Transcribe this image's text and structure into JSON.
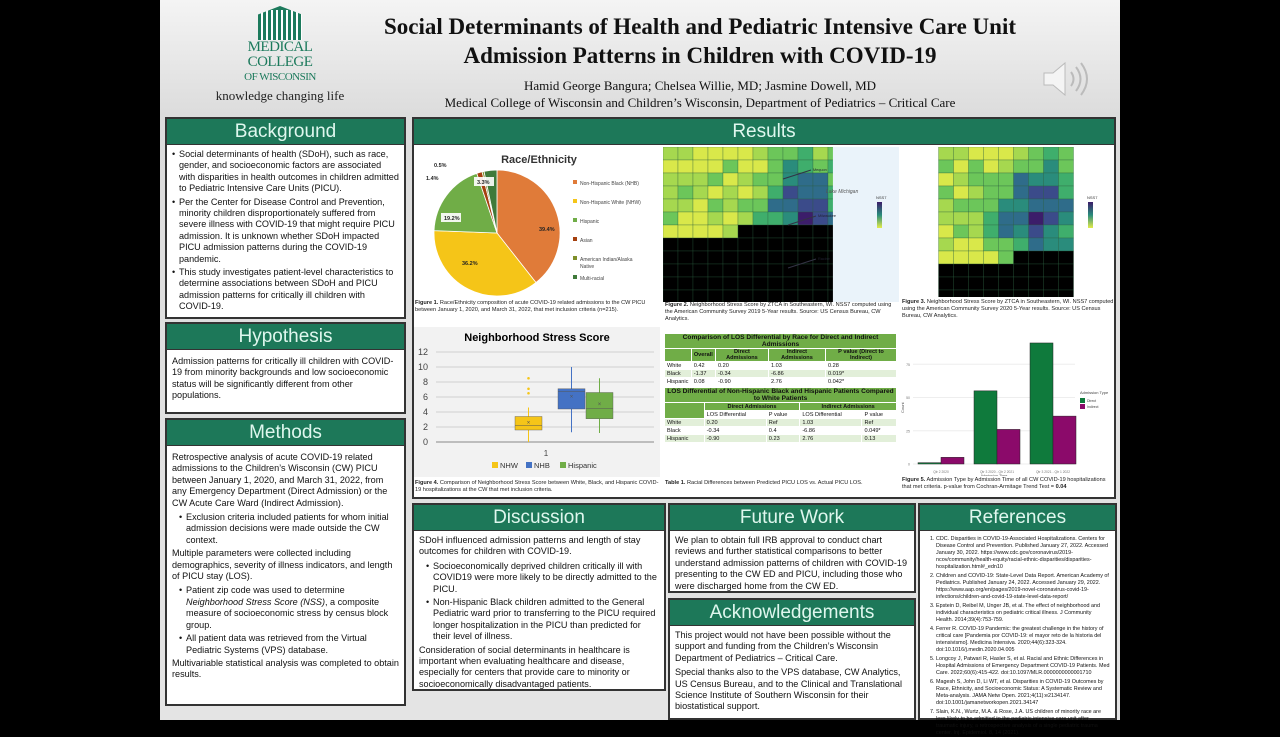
{
  "header": {
    "logo_lines": [
      "MEDICAL",
      "COLLEGE",
      "OF WISCONSIN"
    ],
    "tagline": "knowledge changing life",
    "title_line1": "Social Determinants of Health and Pediatric Intensive Care Unit",
    "title_line2": "Admission Patterns in Children with COVID-19",
    "authors": "Hamid George Bangura; Chelsea Willie, MD; Jasmine Dowell, MD",
    "affiliation": "Medical College of Wisconsin and Children’s Wisconsin, Department of Pediatrics – Critical Care",
    "audio_icon": "speaker-icon"
  },
  "background": {
    "title": "Background",
    "items": [
      "Social determinants of health (SDoH), such as race, gender, and socioeconomic factors are associated with disparities in health outcomes in children admitted to Pediatric Intensive Care Units (PICU).",
      "Per the Center for Disease Control and Prevention, minority children disproportionately suffered from severe illness with COVID-19 that might require PICU admission. It is unknown whether SDoH impacted PICU admission patterns during the COVID-19 pandemic.",
      "This study investigates patient-level characteristics to determine associations between SDoH and PICU admission patterns for critically ill children with COVID-19."
    ]
  },
  "hypothesis": {
    "title": "Hypothesis",
    "text": "Admission patterns for critically ill children with COVID-19 from minority backgrounds and low socioeconomic status will be significantly different from other populations."
  },
  "methods": {
    "title": "Methods",
    "p1": "Retrospective analysis of acute COVID-19 related admissions to the Children’s Wisconsin (CW) PICU between January 1, 2020, and March 31, 2022, from any Emergency Department (Direct Admission) or the CW Acute Care Ward (Indirect Admission).",
    "b1": "Exclusion criteria included patients for whom initial admission decisions were made outside the CW context.",
    "p2": "Multiple parameters were collected including demographics, severity of illness indicators, and length of PICU stay (LOS).",
    "b2a": "Patient zip code was used to determine ",
    "b2i": "Neighborhood Stress Score (NSS)",
    "b2b": ", a composite measure of socioeconomic stress by census block group.",
    "b3": "All patient data was retrieved from the Virtual Pediatric Systems (VPS) database.",
    "p3": "Multivariable statistical analysis was completed to obtain results."
  },
  "results": {
    "title": "Results",
    "fig1_caption_label": "Figure 1.",
    "fig1_caption": " Race/Ethnicity composition of acute COVID-19 related admissions to the CW PICU between January 1, 2020, and March 31, 2022, that met inclusion criteria (n=215).",
    "fig2_caption_label": "Figure 2.",
    "fig2_caption": " Neighborhood Stress Score by ZTCA in Southeastern, WI. NSS7 computed using the American Community Survey 2019 5-Year results. Source: US Census Bureau, CW Analytics.",
    "fig2_labels": [
      "Mequon",
      "Lake Michigan",
      "Milwaukee",
      "Racine"
    ],
    "fig2_legend_title": "NSS7",
    "fig3_caption_label": "Figure 3.",
    "fig3_caption": " Neighborhood Stress Score by ZTCA in Southeastern, WI. NSS7 computed using the American Community Survey 2020 5-Year results. Source: US Census Bureau, CW Analytics.",
    "fig3_legend_title": "NSS7",
    "fig4_caption_label": "Figure 4.",
    "fig4_caption": " Comparison of Neighborhood Stress Score between White, Black, and Hispanic COVID-19 hospitalizations at the CW that met inclusion criteria.",
    "table_caption_label": "Table 1.",
    "table_caption": " Racial Differences between Predicted PICU LOS vs. Actual PICU LOS.",
    "fig5_caption_label": "Figure 5.",
    "fig5_caption": " Admission Type by Admission Time of all CW COVID-19 hospitalizations that met criteria. p-value from Cochran-Armitage Trend Test = ",
    "fig5_p": "0.04",
    "table1": {
      "title": "Comparison of LOS Differential by Race for Direct and Indirect Admissions",
      "headers": [
        "",
        "Overall",
        "Direct Admissions",
        "Indirect Admissions",
        "P value (Direct to Indirect)"
      ],
      "rows": [
        [
          "White",
          "0.42",
          "0.20",
          "1.03",
          "0.28"
        ],
        [
          "Black",
          "-1.37",
          "-0.34",
          "-6.86",
          "0.019*"
        ],
        [
          "Hispanic",
          "0.08",
          "-0.90",
          "2.76",
          "0.042*"
        ]
      ]
    },
    "table2": {
      "title": "LOS Differential of Non-Hispanic Black and Hispanic Patients Compared to White Patients",
      "group_headers": [
        "Direct Admissions",
        "Indirect Admissions"
      ],
      "headers": [
        "LOS Differential",
        "P value",
        "LOS Differential",
        "P value"
      ],
      "rows": [
        [
          "White",
          "0.20",
          "Ref",
          "1.03",
          "Ref"
        ],
        [
          "Black",
          "-0.34",
          "0.4",
          "-6.86",
          "0.049*"
        ],
        [
          "Hispanic",
          "-0.90",
          "0.23",
          "2.76",
          "0.13"
        ]
      ]
    }
  },
  "chart_data": [
    {
      "type": "pie",
      "title": "Race/Ethnicity",
      "labels": [
        "Non-Hispanic Black (NHB)",
        "Non-Hispanic White (NHW)",
        "Hispanic",
        "Asian",
        "American Indian/Alaska Native",
        "Multi-racial"
      ],
      "values": [
        39.4,
        36.2,
        19.2,
        1.4,
        0.5,
        3.3
      ],
      "data_labels": [
        "39.4%",
        "36.2%",
        "19.2%",
        "1.4%",
        "0.5%",
        "3.3%"
      ],
      "colors": [
        "#e07b39",
        "#f5c518",
        "#70ad47",
        "#a5400f",
        "#7f8f2a",
        "#3f7a3a"
      ],
      "legend": "right"
    },
    {
      "type": "box",
      "title": "Neighborhood Stress Score",
      "categories": [
        "1"
      ],
      "ylim": [
        0,
        12
      ],
      "yticks": [
        0,
        2,
        4,
        6,
        8,
        10,
        12
      ],
      "grid": true,
      "legend": "bottom",
      "series": [
        {
          "name": "NHW",
          "color": "#f5c518",
          "min": 0,
          "q1": 1.6,
          "median": 2.2,
          "q3": 3.4,
          "max": 4.6,
          "mean": 2.6,
          "outliers": [
            6.5,
            7.1,
            8.5
          ]
        },
        {
          "name": "NHB",
          "color": "#4472c4",
          "min": 1.3,
          "q1": 4.4,
          "median": 6.7,
          "q3": 7.1,
          "max": 10,
          "mean": 6.1,
          "outliers": []
        },
        {
          "name": "Hispanic",
          "color": "#70ad47",
          "min": 1.2,
          "q1": 3.1,
          "median": 4.5,
          "q3": 6.6,
          "max": 8.5,
          "mean": 5.1,
          "outliers": []
        }
      ]
    },
    {
      "type": "bar",
      "xlabel": "Admission Time",
      "ylabel": "Count",
      "ylim": [
        0,
        95
      ],
      "yticks": [
        0,
        25,
        50,
        75
      ],
      "categories": [
        "Qtr 2 2020",
        "Qtr 3 2020 - Qtr 2 2021",
        "Qtr 3 2021 - Qtr 1 2022"
      ],
      "legend_title": "Admission Type",
      "legend": "right",
      "series": [
        {
          "name": "Direct",
          "color": "#0f7a3c",
          "values": [
            1,
            55,
            91
          ]
        },
        {
          "name": "Indirect",
          "color": "#8b0a6a",
          "values": [
            5,
            26,
            36
          ]
        }
      ]
    }
  ],
  "discussion": {
    "title": "Discussion",
    "p1": "SDoH influenced admission patterns and length of stay outcomes for children with COVID-19.",
    "b1": "Socioeconomically deprived children critically ill with COVID19 were more likely to be directly admitted to the PICU.",
    "b2": "Non-Hispanic Black children admitted to the General Pediatric ward prior to transferring to the PICU required longer hospitalization in the PICU than predicted for their level of illness.",
    "p2": "Consideration of social determinants in healthcare is important when evaluating healthcare and disease, especially for centers that provide care to minority or socioeconomically disadvantaged patients."
  },
  "future": {
    "title": "Future Work",
    "text": "We plan to obtain full IRB approval to conduct chart reviews and further statistical comparisons to better understand admission patterns of children with COVID-19 presenting to the CW ED and PICU, including those who were discharged home from the CW ED."
  },
  "ack": {
    "title": "Acknowledgements",
    "p1": "This project would not have been possible without the support and funding from the Children’s Wisconsin Department of Pediatrics – Critical Care.",
    "p2": "Special thanks also to the VPS database, CW Analytics, US Census Bureau, and to the Clinical and Translational Science Institute of Southern Wisconsin for their biostatistical support."
  },
  "references": {
    "title": "References",
    "items": [
      "CDC. Disparities in COVID-19-Associated Hospitalizations. Centers for Disease Control and Prevention. Published January 27, 2022. Accessed January 30, 2022. https://www.cdc.gov/coronavirus/2019-ncov/community/health-equity/racial-ethnic-disparities/disparities-hospitalization.html#_edn10",
      "Children and COVID-19: State-Level Data Report. American Academy of Pediatrics. Published January 24, 2022. Accessed January 29, 2022. https://www.aap.org/en/pages/2019-novel-coronavirus-covid-19-infections/children-and-covid-19-state-level-data-report/",
      "Epstein D, Reibel M, Unger JB, et al. The effect of neighborhood and individual characteristics on pediatric critical illness. J Community Health. 2014;39(4):753-759.",
      "Ferrer R. COVID-19 Pandemic: the greatest challenge in the history of critical care [Pandemia por COVID-19: el mayor reto de la historia del intensivismo]. Medicina Intensiva. 2020;44(6):323-324. doi:10.1016/j.medin.2020.04.005",
      "Longcoy J, Patwari R, Hasler S, et al. Racial and Ethnic Differences in Hospital Admissions of Emergency Department COVID-19 Patients. Med Care. 2022;60(6):415-422. doi:10.1097/MLR.0000000000001710",
      "Magesh S, John D, Li WT, et al. Disparities in COVID-19 Outcomes by Race, Ethnicity, and Socioeconomic Status: A Systematic Review and Meta-analysis. JAMA Netw Open. 2021;4(11):e2134147. doi:10.1001/jamanetworkopen.2021.34147",
      "Slain, K.N., Wurtz, M.A. & Rose, J.A. US children of minority race are less likely to be admitted to the pediatric intensive care unit after traumatic injury, a retrospective analysis of a single pediatric trauma center. Inj. Epidemiol. 8, 14 (2021)."
    ]
  }
}
